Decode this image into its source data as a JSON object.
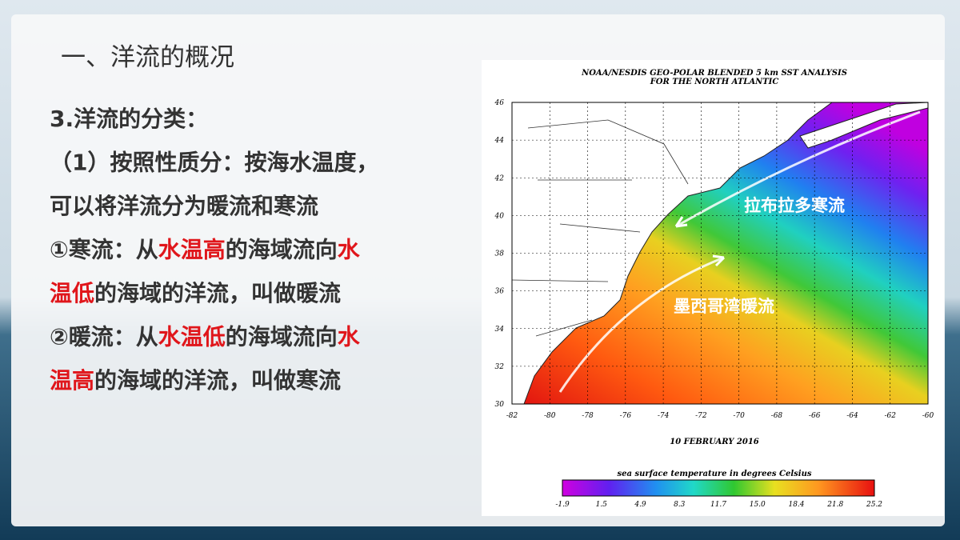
{
  "slide": {
    "title": "一、洋流的概况",
    "lines": [
      [
        {
          "text": "3.洋流的分类：",
          "color": "#333333"
        }
      ],
      [
        {
          "text": "（1）按照性质分：按海水温度，",
          "color": "#333333"
        }
      ],
      [
        {
          "text": "可以将洋流分为暖流和寒流",
          "color": "#333333"
        }
      ],
      [
        {
          "text": "①寒流：从",
          "color": "#333333"
        },
        {
          "text": "水温高",
          "color": "#e0161b"
        },
        {
          "text": "的海域流向",
          "color": "#333333"
        },
        {
          "text": "水",
          "color": "#e0161b"
        }
      ],
      [
        {
          "text": "温低",
          "color": "#e0161b"
        },
        {
          "text": "的海域的洋流，叫做暖流",
          "color": "#333333"
        }
      ],
      [
        {
          "text": "②暖流：从",
          "color": "#333333"
        },
        {
          "text": "水温低",
          "color": "#e0161b"
        },
        {
          "text": "的海域流向",
          "color": "#333333"
        },
        {
          "text": "水",
          "color": "#e0161b"
        }
      ],
      [
        {
          "text": "温高",
          "color": "#e0161b"
        },
        {
          "text": "的海域的洋流，叫做寒流",
          "color": "#333333"
        }
      ]
    ],
    "map": {
      "title_lines": [
        "NOAA/NESDIS GEO-POLAR BLENDED 5 km SST ANALYSIS",
        "FOR THE NORTH ATLANTIC"
      ],
      "lat_labels": [
        "30",
        "32",
        "34",
        "36",
        "38",
        "40",
        "42",
        "44",
        "46"
      ],
      "lon_labels": [
        "-82",
        "-80",
        "-78",
        "-76",
        "-74",
        "-72",
        "-70",
        "-68",
        "-66",
        "-64",
        "-62",
        "-60"
      ],
      "date": "10 FEBRUARY 2016",
      "colorbar_title": "sea surface temperature in degrees Celsius",
      "colorbar_labels": [
        "-1.9",
        "1.5",
        "4.9",
        "8.3",
        "11.7",
        "15.0",
        "18.4",
        "21.8",
        "25.2"
      ],
      "cold_current": "拉布拉多寒流",
      "warm_current": "墨西哥湾暖流"
    }
  }
}
